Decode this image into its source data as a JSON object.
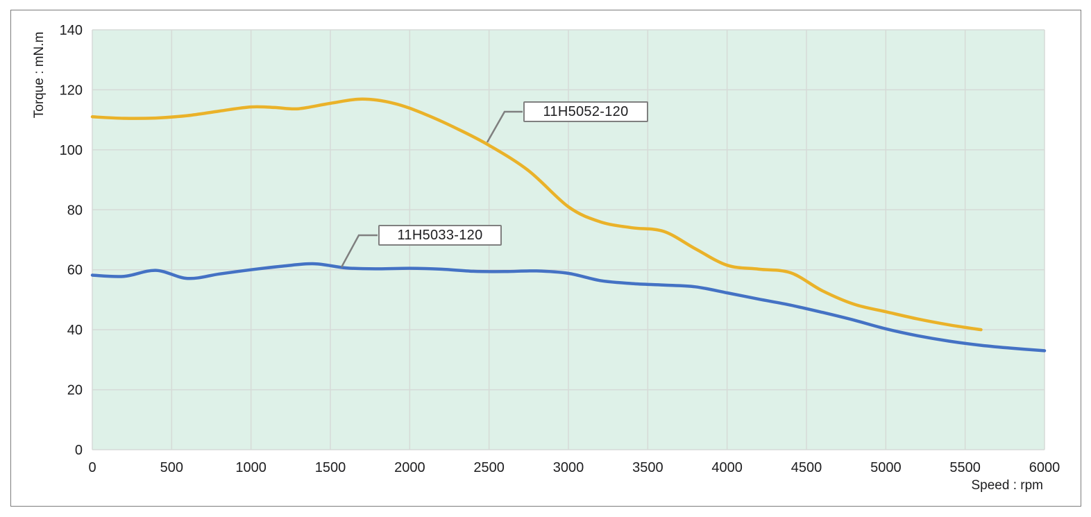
{
  "chart": {
    "y_axis_title": "Torque : mN.m",
    "x_axis_title": "Speed : rpm"
  },
  "chart_data": {
    "type": "line",
    "title": "",
    "xlabel": "Speed : rpm",
    "ylabel": "Torque : mN.m",
    "xlim": [
      0,
      6000
    ],
    "ylim": [
      0,
      140
    ],
    "x_ticks": [
      0,
      500,
      1000,
      1500,
      2000,
      2500,
      3000,
      3500,
      4000,
      4500,
      5000,
      5500,
      6000
    ],
    "y_ticks": [
      0,
      20,
      40,
      60,
      80,
      100,
      120,
      140
    ],
    "grid": true,
    "legend_position": "inline-callouts",
    "plot_background": "#DEF1E8",
    "gridline_color": "#D6DAD7",
    "callout_border_color": "#7F7F7F",
    "series": [
      {
        "name": "11H5052-120",
        "color": "#EAB229",
        "points": [
          [
            0,
            111
          ],
          [
            200,
            110.5
          ],
          [
            400,
            110.6
          ],
          [
            600,
            111.4
          ],
          [
            800,
            112.9
          ],
          [
            1000,
            114.3
          ],
          [
            1150,
            114.1
          ],
          [
            1300,
            113.7
          ],
          [
            1500,
            115.5
          ],
          [
            1700,
            116.9
          ],
          [
            1900,
            115.5
          ],
          [
            2100,
            111.8
          ],
          [
            2300,
            107
          ],
          [
            2500,
            101.5
          ],
          [
            2750,
            93
          ],
          [
            3000,
            81
          ],
          [
            3200,
            76
          ],
          [
            3400,
            74
          ],
          [
            3600,
            72.8
          ],
          [
            3800,
            67
          ],
          [
            4000,
            61.5
          ],
          [
            4200,
            60.2
          ],
          [
            4400,
            59
          ],
          [
            4600,
            53
          ],
          [
            4800,
            48.5
          ],
          [
            5000,
            46
          ],
          [
            5200,
            43.6
          ],
          [
            5400,
            41.6
          ],
          [
            5600,
            40
          ]
        ],
        "callout_anchor": [
          2490,
          102
        ]
      },
      {
        "name": "11H5033-120",
        "color": "#4472C4",
        "points": [
          [
            0,
            58.2
          ],
          [
            200,
            57.8
          ],
          [
            400,
            59.8
          ],
          [
            600,
            57.1
          ],
          [
            800,
            58.6
          ],
          [
            1000,
            60
          ],
          [
            1200,
            61.2
          ],
          [
            1400,
            62
          ],
          [
            1600,
            60.6
          ],
          [
            1800,
            60.3
          ],
          [
            2000,
            60.5
          ],
          [
            2200,
            60.2
          ],
          [
            2400,
            59.5
          ],
          [
            2600,
            59.4
          ],
          [
            2800,
            59.6
          ],
          [
            3000,
            58.8
          ],
          [
            3200,
            56.4
          ],
          [
            3400,
            55.4
          ],
          [
            3600,
            54.9
          ],
          [
            3800,
            54.3
          ],
          [
            4000,
            52.3
          ],
          [
            4200,
            50.2
          ],
          [
            4400,
            48.2
          ],
          [
            4600,
            45.8
          ],
          [
            4800,
            43.2
          ],
          [
            5000,
            40.3
          ],
          [
            5200,
            38
          ],
          [
            5400,
            36.2
          ],
          [
            5600,
            34.8
          ],
          [
            5800,
            33.8
          ],
          [
            6000,
            33
          ]
        ],
        "callout_anchor": [
          1570,
          61
        ]
      }
    ]
  }
}
